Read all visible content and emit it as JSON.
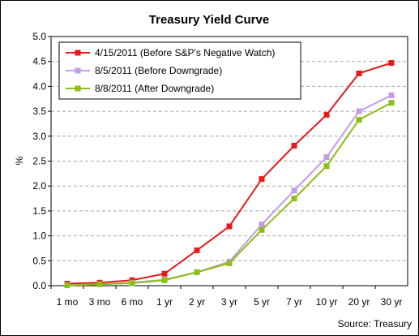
{
  "chart_data": {
    "type": "line",
    "title": "Treasury Yield Curve",
    "xlabel": "",
    "ylabel": "%",
    "ylim": [
      0,
      5
    ],
    "yticks": [
      "0.0",
      "0.5",
      "1.0",
      "1.5",
      "2.0",
      "2.5",
      "3.0",
      "3.5",
      "4.0",
      "4.5",
      "5.0"
    ],
    "grid": true,
    "legend_position": "top-left",
    "categories": [
      "1 mo",
      "3 mo",
      "6 mo",
      "1 yr",
      "2 yr",
      "3 yr",
      "5 yr",
      "7 yr",
      "10 yr",
      "20 yr",
      "30 yr"
    ],
    "series": [
      {
        "name": "4/15/2011 (Before S&P's Negative Watch)",
        "color": "#e8191a",
        "values": [
          0.04,
          0.06,
          0.11,
          0.24,
          0.71,
          1.19,
          2.14,
          2.81,
          3.43,
          4.26,
          4.47
        ]
      },
      {
        "name": "8/5/2011 (Before Downgrade)",
        "color": "#c39be8",
        "values": [
          0.01,
          0.03,
          0.06,
          0.12,
          0.27,
          0.48,
          1.23,
          1.91,
          2.58,
          3.5,
          3.82
        ]
      },
      {
        "name": "8/8/2011 (After Downgrade)",
        "color": "#8cbf16",
        "values": [
          0.01,
          0.03,
          0.05,
          0.11,
          0.27,
          0.45,
          1.12,
          1.75,
          2.4,
          3.33,
          3.67
        ]
      }
    ],
    "annotation": "Source: Treasury"
  }
}
